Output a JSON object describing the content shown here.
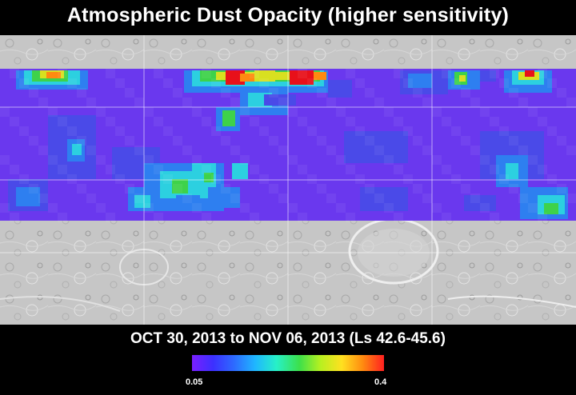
{
  "title": "Atmospheric Dust Opacity (higher sensitivity)",
  "date_range": "OCT 30, 2013 to NOV 06, 2013 (Ls 42.6-45.6)",
  "colorbar": {
    "min_label": "0.05",
    "max_label": "0.4",
    "colors": [
      "#7a1fff",
      "#3c30ff",
      "#2d6bff",
      "#1fb7ff",
      "#27f0c8",
      "#3de04a",
      "#b8f020",
      "#ffe020",
      "#ff8a10",
      "#ff2020"
    ]
  },
  "map": {
    "dust_colors": {
      "low": "#6a38ee",
      "lowmid": "#4a4ae8",
      "mid": "#2e7ff0",
      "cyan": "#2cd0e0",
      "green": "#3ed24a",
      "yellow": "#d8e020",
      "orange": "#ff8a10",
      "red": "#e8101a"
    },
    "terrain_color": "#c8c8c8"
  }
}
